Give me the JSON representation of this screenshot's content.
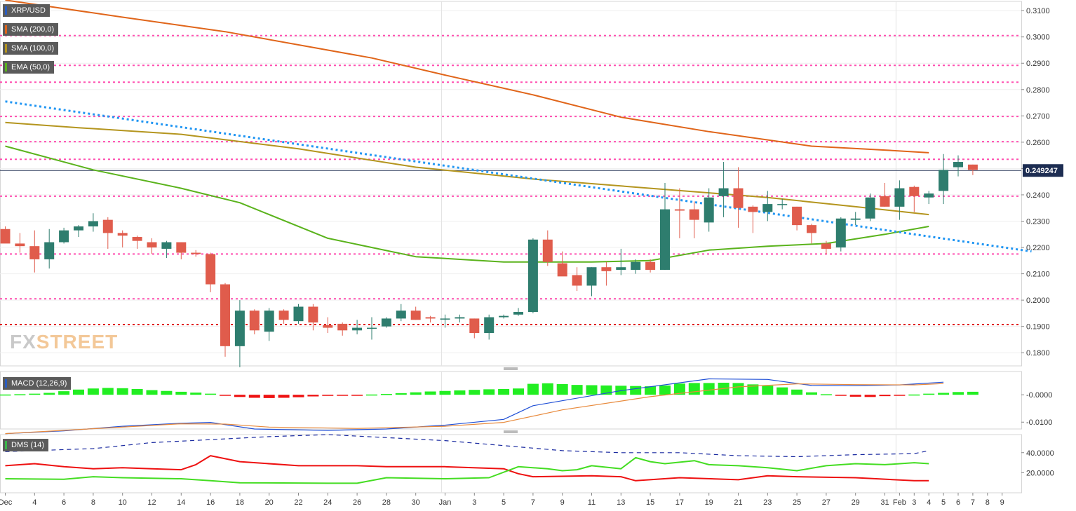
{
  "colors": {
    "up": "#2e7d6e",
    "down": "#e05c4c",
    "sma200": "#e0651a",
    "sma100": "#b4951e",
    "ema50": "#5ab31c",
    "trend": "#2196f3",
    "pink": "#ff4fb0",
    "red_level": "#e00000",
    "macd_line": "#1f4fd6",
    "signal_line": "#e88a3c",
    "hist_pos": "#22ee22",
    "hist_neg": "#ee1111",
    "dmi_plus": "#44dd22",
    "dmi_minus": "#ee1111",
    "adx": "#1a2aa0"
  },
  "labels": {
    "symbol": "XRP/USD",
    "sma200": "SMA (200,0)",
    "sma100": "SMA (100,0)",
    "ema50": "EMA (50,0)",
    "macd": "MACD (12,26,9)",
    "dms": "DMS (14)"
  },
  "watermark": {
    "part1": "FX",
    "part2": "STREET"
  },
  "chart_data": {
    "type": "candlestick",
    "symbol": "XRP/USD",
    "price_axis": {
      "min": 0.175,
      "max": 0.3135,
      "ticks": [
        "0.3100",
        "0.3000",
        "0.2900",
        "0.2800",
        "0.2700",
        "0.2600",
        "0.2500",
        "0.2400",
        "0.2300",
        "0.2200",
        "0.2100",
        "0.2000",
        "0.1900",
        "0.1800"
      ],
      "tick_values": [
        0.31,
        0.3,
        0.29,
        0.28,
        0.27,
        0.26,
        0.25,
        0.24,
        0.23,
        0.22,
        0.21,
        0.2,
        0.19,
        0.18
      ],
      "current_price": 0.249247,
      "current_label": "0.249247"
    },
    "x_axis": {
      "labels": [
        "Dec",
        "4",
        "6",
        "8",
        "10",
        "12",
        "14",
        "16",
        "18",
        "20",
        "22",
        "24",
        "26",
        "28",
        "30",
        "Jan",
        "3",
        "5",
        "7",
        "9",
        "11",
        "13",
        "15",
        "17",
        "19",
        "21",
        "23",
        "25",
        "27",
        "29",
        "31",
        "Feb",
        "3",
        "4",
        "5",
        "6",
        "7",
        "8",
        "9"
      ],
      "label_index": [
        0,
        2,
        4,
        6,
        8,
        10,
        12,
        14,
        16,
        18,
        20,
        22,
        24,
        26,
        28,
        30,
        32,
        34,
        36,
        38,
        40,
        42,
        44,
        46,
        48,
        50,
        52,
        54,
        56,
        58,
        60,
        61,
        62,
        63,
        64,
        65,
        66,
        67,
        68
      ],
      "month_separator_index": [
        30,
        61
      ]
    },
    "candles": [
      [
        0.227,
        0.228,
        0.222,
        0.2215
      ],
      [
        0.2215,
        0.2255,
        0.218,
        0.2205
      ],
      [
        0.2205,
        0.2265,
        0.2105,
        0.2155
      ],
      [
        0.2155,
        0.227,
        0.212,
        0.222
      ],
      [
        0.222,
        0.2275,
        0.2215,
        0.2265
      ],
      [
        0.2265,
        0.2285,
        0.224,
        0.228
      ],
      [
        0.228,
        0.233,
        0.226,
        0.23
      ],
      [
        0.2305,
        0.2315,
        0.2195,
        0.2255
      ],
      [
        0.2255,
        0.2265,
        0.22,
        0.2245
      ],
      [
        0.224,
        0.2245,
        0.2195,
        0.2225
      ],
      [
        0.222,
        0.2235,
        0.2175,
        0.22
      ],
      [
        0.2195,
        0.2225,
        0.216,
        0.222
      ],
      [
        0.222,
        0.222,
        0.2155,
        0.218
      ],
      [
        0.218,
        0.219,
        0.2165,
        0.2175
      ],
      [
        0.2175,
        0.218,
        0.203,
        0.206
      ],
      [
        0.206,
        0.2065,
        0.1785,
        0.1825
      ],
      [
        0.1825,
        0.2,
        0.1745,
        0.196
      ],
      [
        0.196,
        0.1965,
        0.187,
        0.1885
      ],
      [
        0.188,
        0.197,
        0.1845,
        0.196
      ],
      [
        0.196,
        0.1965,
        0.191,
        0.1925
      ],
      [
        0.192,
        0.1985,
        0.191,
        0.1975
      ],
      [
        0.1975,
        0.1985,
        0.1885,
        0.1915
      ],
      [
        0.1905,
        0.1935,
        0.1875,
        0.1895
      ],
      [
        0.191,
        0.1915,
        0.1865,
        0.1885
      ],
      [
        0.1885,
        0.1925,
        0.187,
        0.1895
      ],
      [
        0.1895,
        0.1935,
        0.185,
        0.1895
      ],
      [
        0.19,
        0.1935,
        0.1895,
        0.193
      ],
      [
        0.193,
        0.1985,
        0.192,
        0.196
      ],
      [
        0.196,
        0.1975,
        0.1925,
        0.1925
      ],
      [
        0.1935,
        0.194,
        0.1915,
        0.193
      ],
      [
        0.193,
        0.1945,
        0.1895,
        0.193
      ],
      [
        0.193,
        0.1945,
        0.1915,
        0.1935
      ],
      [
        0.193,
        0.193,
        0.1855,
        0.1875
      ],
      [
        0.1875,
        0.1945,
        0.185,
        0.1935
      ],
      [
        0.1935,
        0.1945,
        0.193,
        0.194
      ],
      [
        0.1945,
        0.197,
        0.194,
        0.1955
      ],
      [
        0.1955,
        0.2235,
        0.195,
        0.223
      ],
      [
        0.223,
        0.2265,
        0.213,
        0.2145
      ],
      [
        0.214,
        0.2185,
        0.2095,
        0.209
      ],
      [
        0.2095,
        0.2125,
        0.2035,
        0.2055
      ],
      [
        0.2055,
        0.2125,
        0.2015,
        0.2125
      ],
      [
        0.2125,
        0.2145,
        0.2055,
        0.211
      ],
      [
        0.2115,
        0.2195,
        0.2095,
        0.2125
      ],
      [
        0.2115,
        0.2155,
        0.21,
        0.2145
      ],
      [
        0.2145,
        0.2155,
        0.2105,
        0.2115
      ],
      [
        0.2115,
        0.2445,
        0.2115,
        0.2345
      ],
      [
        0.2345,
        0.2425,
        0.2235,
        0.234
      ],
      [
        0.2345,
        0.2375,
        0.2235,
        0.2305
      ],
      [
        0.2295,
        0.2425,
        0.226,
        0.239
      ],
      [
        0.2395,
        0.2525,
        0.2315,
        0.2425
      ],
      [
        0.2425,
        0.2505,
        0.2275,
        0.235
      ],
      [
        0.2355,
        0.236,
        0.2255,
        0.2335
      ],
      [
        0.2335,
        0.2415,
        0.23,
        0.2365
      ],
      [
        0.2365,
        0.2385,
        0.2345,
        0.2365
      ],
      [
        0.2355,
        0.2355,
        0.2265,
        0.2285
      ],
      [
        0.2285,
        0.229,
        0.2215,
        0.2255
      ],
      [
        0.2215,
        0.2225,
        0.2175,
        0.2195
      ],
      [
        0.22,
        0.2315,
        0.2185,
        0.231
      ],
      [
        0.2305,
        0.2335,
        0.2285,
        0.231
      ],
      [
        0.231,
        0.2405,
        0.23,
        0.239
      ],
      [
        0.2395,
        0.2445,
        0.2355,
        0.2355
      ],
      [
        0.2355,
        0.2455,
        0.2305,
        0.2425
      ],
      [
        0.243,
        0.2435,
        0.2335,
        0.2395
      ],
      [
        0.239,
        0.2415,
        0.2365,
        0.2405
      ],
      [
        0.2415,
        0.2555,
        0.2365,
        0.2495
      ],
      [
        0.2505,
        0.255,
        0.247,
        0.2525
      ],
      [
        0.2515,
        0.2515,
        0.2475,
        0.2495
      ]
    ],
    "sma200": [
      [
        0,
        0.314
      ],
      [
        8,
        0.3075
      ],
      [
        15,
        0.302
      ],
      [
        25,
        0.292
      ],
      [
        30,
        0.2855
      ],
      [
        36,
        0.278
      ],
      [
        42,
        0.2695
      ],
      [
        48,
        0.264
      ],
      [
        55,
        0.2585
      ],
      [
        60,
        0.257
      ],
      [
        63,
        0.256
      ]
    ],
    "sma100": [
      [
        0,
        0.2675
      ],
      [
        5,
        0.2655
      ],
      [
        12,
        0.263
      ],
      [
        20,
        0.2575
      ],
      [
        28,
        0.2505
      ],
      [
        36,
        0.246
      ],
      [
        44,
        0.2425
      ],
      [
        52,
        0.239
      ],
      [
        58,
        0.2355
      ],
      [
        63,
        0.2325
      ]
    ],
    "ema50": [
      [
        0,
        0.2585
      ],
      [
        6,
        0.2495
      ],
      [
        12,
        0.2425
      ],
      [
        16,
        0.237
      ],
      [
        22,
        0.2235
      ],
      [
        28,
        0.2165
      ],
      [
        34,
        0.2145
      ],
      [
        40,
        0.2145
      ],
      [
        44,
        0.215
      ],
      [
        48,
        0.219
      ],
      [
        52,
        0.2205
      ],
      [
        56,
        0.2215
      ],
      [
        60,
        0.225
      ],
      [
        63,
        0.228
      ]
    ],
    "trendline": [
      [
        0,
        0.2755
      ],
      [
        70,
        0.2185
      ]
    ],
    "pink_levels": [
      0.3005,
      0.2892,
      0.2828,
      0.2698,
      0.2602,
      0.2535,
      0.2395,
      0.2175,
      0.2005
    ],
    "red_level": 0.1907,
    "macd": {
      "axis": {
        "min": -0.0125,
        "max": 0.0085,
        "ticks": [
          "-0.0000",
          "-0.0100"
        ],
        "tick_values": [
          0.0,
          -0.01
        ]
      },
      "histogram": [
        0.0001,
        0.0002,
        0.0004,
        0.0007,
        0.0013,
        0.0019,
        0.0023,
        0.0025,
        0.0024,
        0.0021,
        0.0017,
        0.0014,
        0.0011,
        0.0008,
        0.0004,
        -0.0003,
        -0.0008,
        -0.0011,
        -0.0012,
        -0.0011,
        -0.0009,
        -0.0006,
        -0.0004,
        -0.0002,
        -0.0001,
        0.0001,
        0.0003,
        0.0006,
        0.0009,
        0.0012,
        0.0014,
        0.0016,
        0.0018,
        0.002,
        0.0021,
        0.0023,
        0.004,
        0.0042,
        0.0039,
        0.0036,
        0.0035,
        0.0034,
        0.0033,
        0.0032,
        0.0031,
        0.0034,
        0.0041,
        0.0043,
        0.0043,
        0.0044,
        0.0043,
        0.0038,
        0.0033,
        0.0027,
        0.0019,
        0.0009,
        0.0002,
        -0.0003,
        -0.0007,
        -0.0008,
        -0.0005,
        -0.0002,
        0.0001,
        0.0004,
        0.0007,
        0.001,
        0.0011
      ],
      "macd_line": [
        [
          0,
          -0.0142
        ],
        [
          4,
          -0.0132
        ],
        [
          8,
          -0.0115
        ],
        [
          12,
          -0.0104
        ],
        [
          14,
          -0.0101
        ],
        [
          15,
          -0.0109
        ],
        [
          17,
          -0.0125
        ],
        [
          22,
          -0.013
        ],
        [
          26,
          -0.0125
        ],
        [
          30,
          -0.0111
        ],
        [
          34,
          -0.009
        ],
        [
          36,
          -0.004
        ],
        [
          42,
          0.0015
        ],
        [
          48,
          0.0058
        ],
        [
          52,
          0.0056
        ],
        [
          55,
          0.0034
        ],
        [
          58,
          0.0033
        ],
        [
          61,
          0.0036
        ],
        [
          64,
          0.0046
        ]
      ],
      "signal_line": [
        [
          0,
          -0.0142
        ],
        [
          6,
          -0.0124
        ],
        [
          12,
          -0.0106
        ],
        [
          15,
          -0.0107
        ],
        [
          18,
          -0.0118
        ],
        [
          24,
          -0.0123
        ],
        [
          30,
          -0.0115
        ],
        [
          34,
          -0.0101
        ],
        [
          38,
          -0.0055
        ],
        [
          44,
          -0.0007
        ],
        [
          50,
          0.0029
        ],
        [
          54,
          0.004
        ],
        [
          58,
          0.0037
        ],
        [
          62,
          0.0036
        ],
        [
          64,
          0.0041
        ]
      ]
    },
    "dms": {
      "axis": {
        "min": 0,
        "max": 58,
        "ticks": [
          "40.0000",
          "20.0000"
        ],
        "tick_values": [
          40,
          20
        ]
      },
      "plus_di": [
        [
          0,
          14
        ],
        [
          4,
          13.5
        ],
        [
          6,
          16
        ],
        [
          8,
          15
        ],
        [
          12,
          14
        ],
        [
          14,
          12
        ],
        [
          16,
          10
        ],
        [
          22,
          9.5
        ],
        [
          24,
          9.5
        ],
        [
          26,
          15
        ],
        [
          30,
          14
        ],
        [
          33,
          15
        ],
        [
          35,
          26
        ],
        [
          37,
          24
        ],
        [
          38,
          22
        ],
        [
          39,
          23
        ],
        [
          40,
          27
        ],
        [
          42,
          24
        ],
        [
          43,
          35
        ],
        [
          44,
          31
        ],
        [
          45,
          29
        ],
        [
          47,
          32
        ],
        [
          48,
          28
        ],
        [
          50,
          27
        ],
        [
          52,
          25
        ],
        [
          54,
          22
        ],
        [
          56,
          27
        ],
        [
          58,
          29
        ],
        [
          60,
          28
        ],
        [
          62,
          30
        ],
        [
          63,
          29
        ]
      ],
      "minus_di": [
        [
          0,
          27
        ],
        [
          2,
          29
        ],
        [
          4,
          26
        ],
        [
          6,
          24
        ],
        [
          8,
          25
        ],
        [
          10,
          24
        ],
        [
          12,
          23
        ],
        [
          13,
          28
        ],
        [
          14,
          37
        ],
        [
          16,
          31
        ],
        [
          20,
          27
        ],
        [
          24,
          27
        ],
        [
          26,
          26
        ],
        [
          30,
          26
        ],
        [
          34,
          24
        ],
        [
          35,
          19
        ],
        [
          36,
          16
        ],
        [
          40,
          17
        ],
        [
          42,
          16
        ],
        [
          43,
          12
        ],
        [
          46,
          15
        ],
        [
          50,
          13
        ],
        [
          52,
          17
        ],
        [
          54,
          16
        ],
        [
          58,
          15
        ],
        [
          62,
          12
        ],
        [
          63,
          12
        ]
      ],
      "adx": [
        [
          0,
          41
        ],
        [
          6,
          44
        ],
        [
          10,
          50
        ],
        [
          14,
          53
        ],
        [
          18,
          56
        ],
        [
          22,
          58
        ],
        [
          26,
          55
        ],
        [
          30,
          52
        ],
        [
          34,
          47
        ],
        [
          38,
          42
        ],
        [
          42,
          40
        ],
        [
          46,
          40
        ],
        [
          50,
          37
        ],
        [
          54,
          36
        ],
        [
          58,
          38
        ],
        [
          62,
          39
        ],
        [
          63,
          42
        ]
      ]
    }
  }
}
